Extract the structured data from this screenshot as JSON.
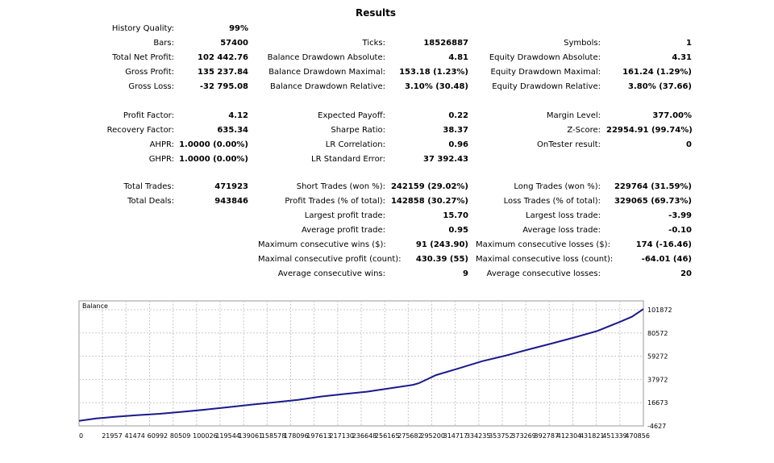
{
  "title": "Results",
  "rows": [
    {
      "c1l": "History Quality:",
      "c1v": "99%",
      "c2l": "",
      "c2v": "",
      "c3l": "",
      "c3v": ""
    },
    {
      "c1l": "Bars:",
      "c1v": "57400",
      "c2l": "Ticks:",
      "c2v": "18526887",
      "c3l": "Symbols:",
      "c3v": "1"
    },
    {
      "c1l": "Total Net Profit:",
      "c1v": "102 442.76",
      "c2l": "Balance Drawdown Absolute:",
      "c2v": "4.81",
      "c3l": "Equity Drawdown Absolute:",
      "c3v": "4.31"
    },
    {
      "c1l": "Gross Profit:",
      "c1v": "135 237.84",
      "c2l": "Balance Drawdown Maximal:",
      "c2v": "153.18 (1.23%)",
      "c3l": "Equity Drawdown Maximal:",
      "c3v": "161.24 (1.29%)"
    },
    {
      "c1l": "Gross Loss:",
      "c1v": "-32 795.08",
      "c2l": "Balance Drawdown Relative:",
      "c2v": "3.10% (30.48)",
      "c3l": "Equity Drawdown Relative:",
      "c3v": "3.80% (37.66)"
    },
    {
      "c1l": "",
      "c1v": "",
      "c2l": "",
      "c2v": "",
      "c3l": "",
      "c3v": ""
    },
    {
      "c1l": "Profit Factor:",
      "c1v": "4.12",
      "c2l": "Expected Payoff:",
      "c2v": "0.22",
      "c3l": "Margin Level:",
      "c3v": "377.00%"
    },
    {
      "c1l": "Recovery Factor:",
      "c1v": "635.34",
      "c2l": "Sharpe Ratio:",
      "c2v": "38.37",
      "c3l": "Z-Score:",
      "c3v": "22954.91 (99.74%)"
    },
    {
      "c1l": "AHPR:",
      "c1v": "1.0000 (0.00%)",
      "c2l": "LR Correlation:",
      "c2v": "0.96",
      "c3l": "OnTester result:",
      "c3v": "0"
    },
    {
      "c1l": "GHPR:",
      "c1v": "1.0000 (0.00%)",
      "c2l": "LR Standard Error:",
      "c2v": "37 392.43",
      "c3l": "",
      "c3v": ""
    },
    {
      "c1l": "",
      "c1v": "",
      "c2l": "",
      "c2v": "",
      "c3l": "",
      "c3v": ""
    },
    {
      "c1l": "Total Trades:",
      "c1v": "471923",
      "c2l": "Short Trades (won %):",
      "c2v": "242159 (29.02%)",
      "c3l": "Long Trades (won %):",
      "c3v": "229764 (31.59%)"
    },
    {
      "c1l": "Total Deals:",
      "c1v": "943846",
      "c2l": "Profit Trades (% of total):",
      "c2v": "142858 (30.27%)",
      "c3l": "Loss Trades (% of total):",
      "c3v": "329065 (69.73%)"
    },
    {
      "c1l": "",
      "c1v": "",
      "c2l": "Largest profit trade:",
      "c2v": "15.70",
      "c3l": "Largest loss trade:",
      "c3v": "-3.99"
    },
    {
      "c1l": "",
      "c1v": "",
      "c2l": "Average profit trade:",
      "c2v": "0.95",
      "c3l": "Average loss trade:",
      "c3v": "-0.10"
    },
    {
      "c1l": "",
      "c1v": "",
      "c2l": "Maximum consecutive wins ($):",
      "c2v": "91 (243.90)",
      "c3l": "Maximum consecutive losses ($):",
      "c3v": "174 (-16.46)"
    },
    {
      "c1l": "",
      "c1v": "",
      "c2l": "Maximal consecutive profit (count):",
      "c2v": "430.39 (55)",
      "c3l": "Maximal consecutive loss (count):",
      "c3v": "-64.01 (46)"
    },
    {
      "c1l": "",
      "c1v": "",
      "c2l": "Average consecutive wins:",
      "c2v": "9",
      "c3l": "Average consecutive losses:",
      "c3v": "20"
    }
  ],
  "chart_data": {
    "type": "line",
    "title": "Balance",
    "series_color": "#1a1a8c",
    "grid": true,
    "y_ticks": [
      101872,
      80572,
      59272,
      37972,
      16673,
      -4627
    ],
    "x_ticks": [
      "0",
      "21957",
      "41474",
      "60992",
      "80509",
      "100026",
      "119544",
      "139061",
      "158578",
      "178096",
      "197613",
      "217130",
      "236648",
      "256165",
      "275682",
      "295200",
      "314717",
      "334235",
      "353752",
      "373269",
      "392787",
      "412304",
      "431821",
      "451339",
      "470856"
    ],
    "xlim": [
      0,
      490000
    ],
    "ylim": [
      -4627,
      110000
    ],
    "x": [
      0,
      15000,
      30000,
      50000,
      70000,
      90000,
      110000,
      130000,
      150000,
      170000,
      190000,
      210000,
      230000,
      250000,
      270000,
      290000,
      295000,
      310000,
      330000,
      350000,
      370000,
      390000,
      410000,
      430000,
      450000,
      470000,
      480000,
      490000
    ],
    "y": [
      0,
      2200,
      3600,
      5100,
      6500,
      8300,
      10300,
      12600,
      14900,
      17000,
      19200,
      22300,
      24600,
      26700,
      29800,
      33000,
      34500,
      42000,
      48200,
      54700,
      59700,
      65300,
      70800,
      76400,
      82400,
      90900,
      95400,
      102442
    ]
  }
}
